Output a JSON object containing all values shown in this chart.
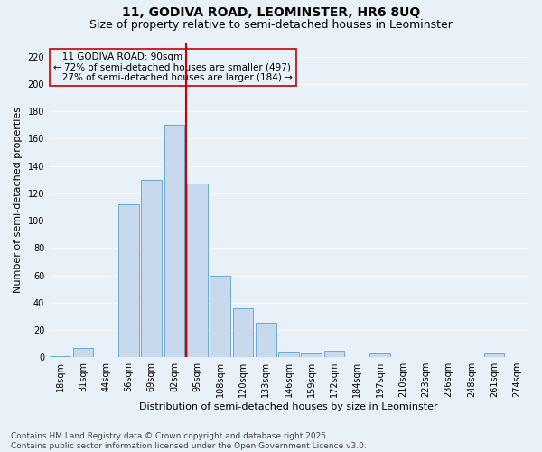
{
  "title": "11, GODIVA ROAD, LEOMINSTER, HR6 8UQ",
  "subtitle": "Size of property relative to semi-detached houses in Leominster",
  "xlabel": "Distribution of semi-detached houses by size in Leominster",
  "ylabel": "Number of semi-detached properties",
  "categories": [
    "18sqm",
    "31sqm",
    "44sqm",
    "56sqm",
    "69sqm",
    "82sqm",
    "95sqm",
    "108sqm",
    "120sqm",
    "133sqm",
    "146sqm",
    "159sqm",
    "172sqm",
    "184sqm",
    "197sqm",
    "210sqm",
    "223sqm",
    "236sqm",
    "248sqm",
    "261sqm",
    "274sqm"
  ],
  "values": [
    1,
    7,
    0,
    112,
    130,
    170,
    127,
    60,
    36,
    25,
    4,
    3,
    5,
    0,
    3,
    0,
    0,
    0,
    0,
    3,
    0
  ],
  "bar_color": "#c8d9ee",
  "bar_edge_color": "#6aaad4",
  "subject_line_color": "#cc0000",
  "annotation_box_color": "#cc0000",
  "ylim": [
    0,
    230
  ],
  "yticks": [
    0,
    20,
    40,
    60,
    80,
    100,
    120,
    140,
    160,
    180,
    200,
    220
  ],
  "subject_line_label": "11 GODIVA ROAD: 90sqm",
  "pct_smaller": "72%",
  "pct_smaller_n": "497",
  "pct_larger": "27%",
  "pct_larger_n": "184",
  "footer_line1": "Contains HM Land Registry data © Crown copyright and database right 2025.",
  "footer_line2": "Contains public sector information licensed under the Open Government Licence v3.0.",
  "bg_color": "#e8f0f8",
  "grid_color": "#ffffff",
  "title_fontsize": 10,
  "subtitle_fontsize": 9,
  "axis_label_fontsize": 8,
  "tick_fontsize": 7,
  "annotation_fontsize": 7.5,
  "footer_fontsize": 6.5
}
